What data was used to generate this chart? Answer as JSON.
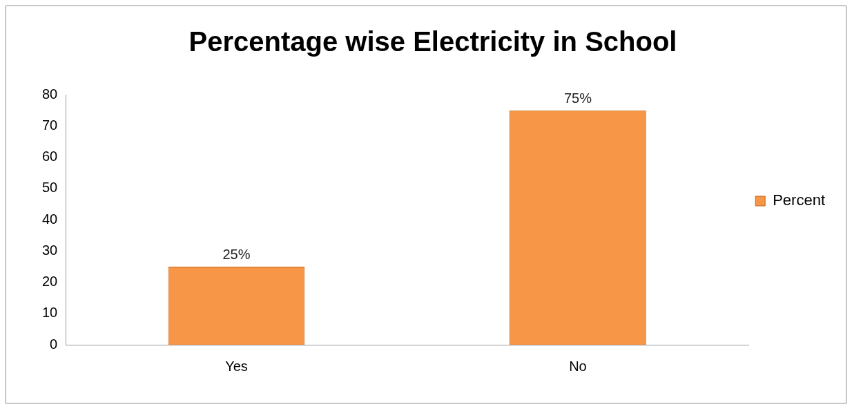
{
  "chart_data": {
    "type": "bar",
    "title": "Percentage wise Electricity in School",
    "categories": [
      "Yes",
      "No"
    ],
    "series": [
      {
        "name": "Percent",
        "color": "#f79646",
        "values": [
          25,
          75
        ],
        "value_labels": [
          "25%",
          "75%"
        ]
      }
    ],
    "ylim": [
      0,
      80
    ],
    "yticks": [
      0,
      10,
      20,
      30,
      40,
      50,
      60,
      70,
      80
    ],
    "grid": false,
    "legend": "right"
  }
}
